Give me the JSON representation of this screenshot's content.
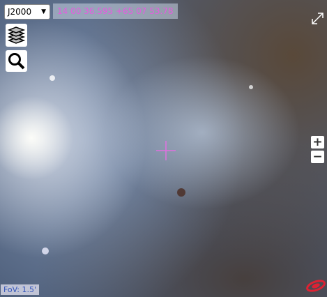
{
  "frame_selector": {
    "value": "J2000"
  },
  "coordinates": "14 00 36.595 +65 07 53.78",
  "zoom": {
    "in": "+",
    "out": "−"
  },
  "fov": "FoV: 1.5'"
}
